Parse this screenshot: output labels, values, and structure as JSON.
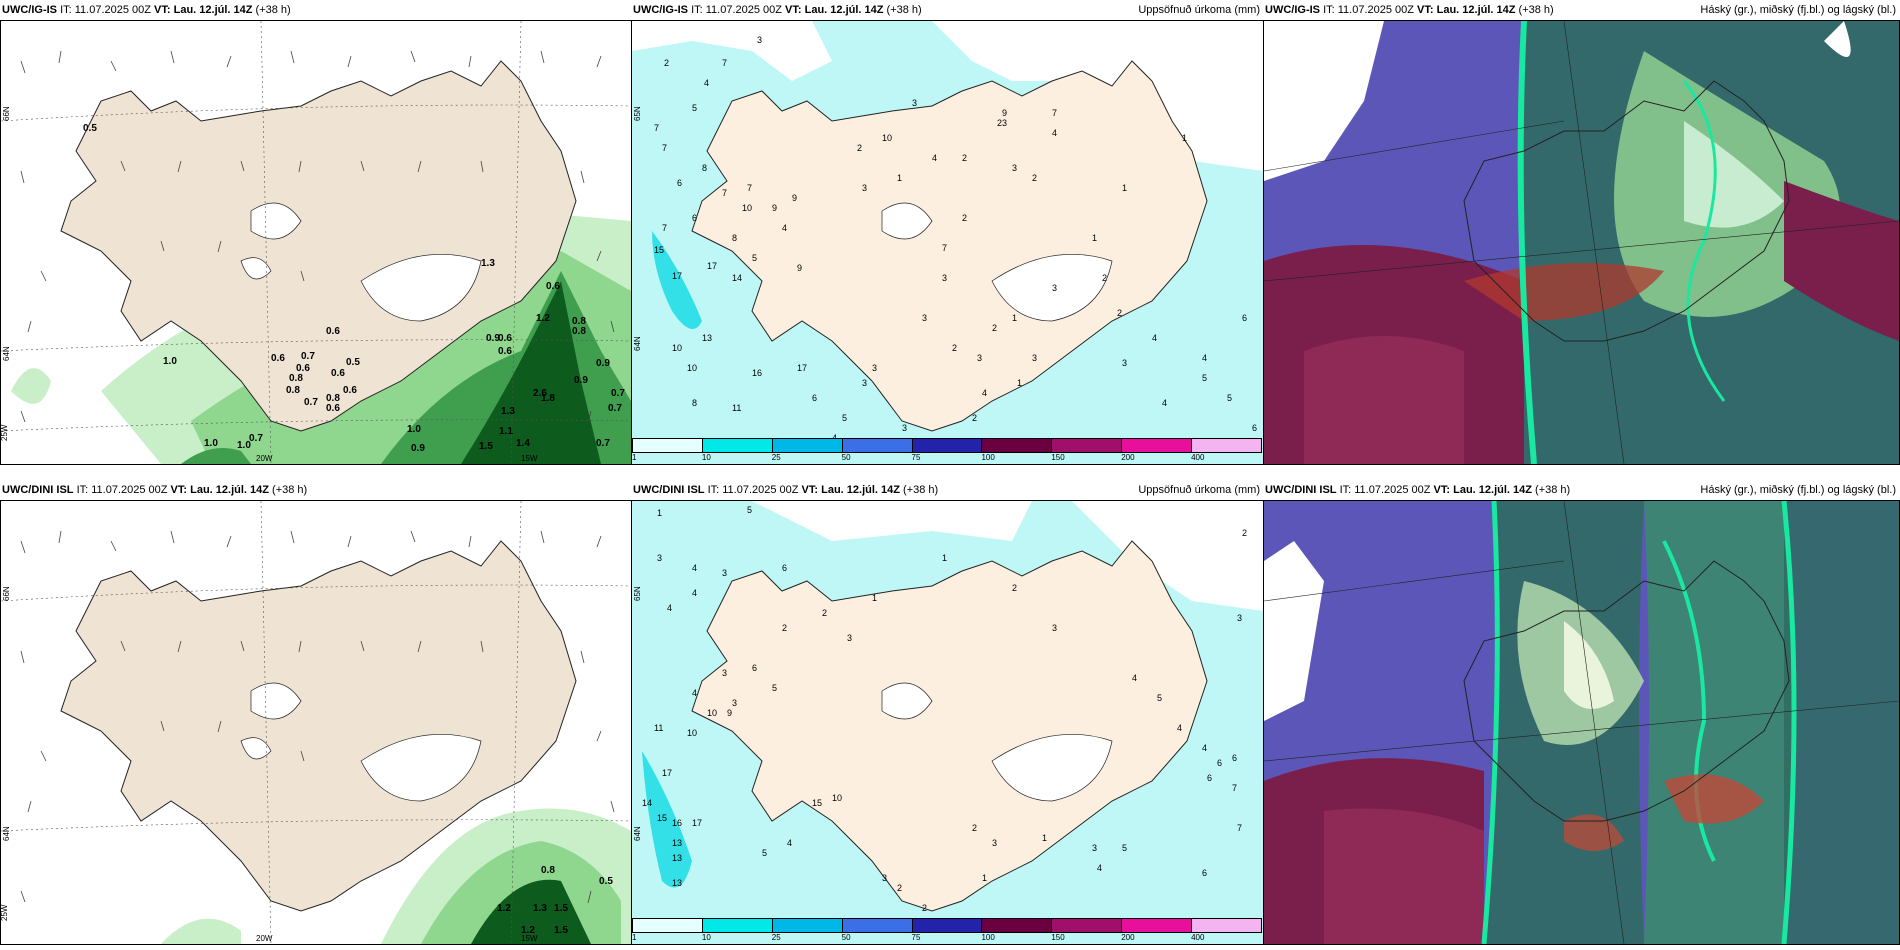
{
  "rows": [
    {
      "model": "UWC/IG-IS",
      "it": "IT: 11.07.2025 00Z",
      "vt_label": "VT:",
      "vt": "Lau. 12.júl. 14Z",
      "lead": "(+38 h)"
    },
    {
      "model": "UWC/DINI ISL",
      "it": "IT: 11.07.2025 00Z",
      "vt_label": "VT:",
      "vt": "Lau. 12.júl. 14Z",
      "lead": "(+38 h)"
    }
  ],
  "precip_title": "Uppsöfnuð úrkoma (mm)",
  "cloud_title": "Háský (gr.), miðský (fj.bl.) og lágský (bl.)",
  "axis_labels": {
    "lat66": "66N",
    "lat64": "64N",
    "lat65": "65N",
    "lon20": "20W",
    "lon15": "15W",
    "lon25": "25W"
  },
  "legend": {
    "ticks": [
      "1",
      "10",
      "25",
      "50",
      "75",
      "100",
      "150",
      "200",
      "400"
    ],
    "colors": [
      "#e6ffff",
      "#00e8e8",
      "#00b8e8",
      "#3a6fe8",
      "#2222aa",
      "#6a0040",
      "#a0106a",
      "#e8109a",
      "#f4b4f0"
    ]
  },
  "wind_values_top": [
    "0.5",
    "1.3",
    "0.6",
    "0.6",
    "0.7",
    "0.6",
    "0.5",
    "0.6",
    "0.8",
    "0.6",
    "0.8",
    "0.6",
    "0.8",
    "0.7",
    "0.6",
    "0.7",
    "1.0",
    "1.0",
    "0.9",
    "1.1",
    "1.5",
    "1.4",
    "0.9",
    "1.2",
    "0.8",
    "0.8",
    "0.6",
    "0.9",
    "0.6",
    "0.9",
    "0.7",
    "0.7",
    "0.7",
    "2.6",
    "1.3",
    "1.0",
    "1.0",
    "1.8"
  ],
  "wind_values_bottom": [
    "0.8",
    "0.5",
    "1.2",
    "1.3",
    "1.5",
    "1.5",
    "1.2"
  ],
  "precip_values_top": [
    "3",
    "2",
    "7",
    "4",
    "5",
    "7",
    "7",
    "8",
    "7",
    "6",
    "7",
    "10",
    "9",
    "9",
    "8",
    "7",
    "6",
    "4",
    "5",
    "15",
    "17",
    "17",
    "14",
    "9",
    "13",
    "10",
    "10",
    "11",
    "8",
    "16",
    "17",
    "6",
    "5",
    "4",
    "3",
    "3",
    "2",
    "4",
    "3",
    "2",
    "3",
    "2",
    "9",
    "23",
    "7",
    "4",
    "1",
    "1",
    "2",
    "3",
    "10",
    "3",
    "4",
    "2",
    "1",
    "1",
    "2",
    "3",
    "7",
    "3",
    "1",
    "2",
    "2",
    "6",
    "4",
    "4",
    "5",
    "3",
    "5",
    "4",
    "3",
    "3",
    "1",
    "2",
    "3",
    "6"
  ],
  "precip_values_bottom": [
    "5",
    "1",
    "3",
    "4",
    "3",
    "4",
    "4",
    "6",
    "2",
    "2",
    "1",
    "3",
    "3",
    "6",
    "5",
    "4",
    "3",
    "10",
    "9",
    "11",
    "10",
    "17",
    "14",
    "15",
    "16",
    "17",
    "13",
    "13",
    "13",
    "15",
    "10",
    "5",
    "4",
    "3",
    "2",
    "1",
    "2",
    "4",
    "6",
    "7",
    "5",
    "3",
    "1",
    "2",
    "3",
    "4",
    "4",
    "6",
    "7",
    "6",
    "6",
    "5",
    "4",
    "3",
    "2",
    "1",
    "2",
    "3"
  ]
}
